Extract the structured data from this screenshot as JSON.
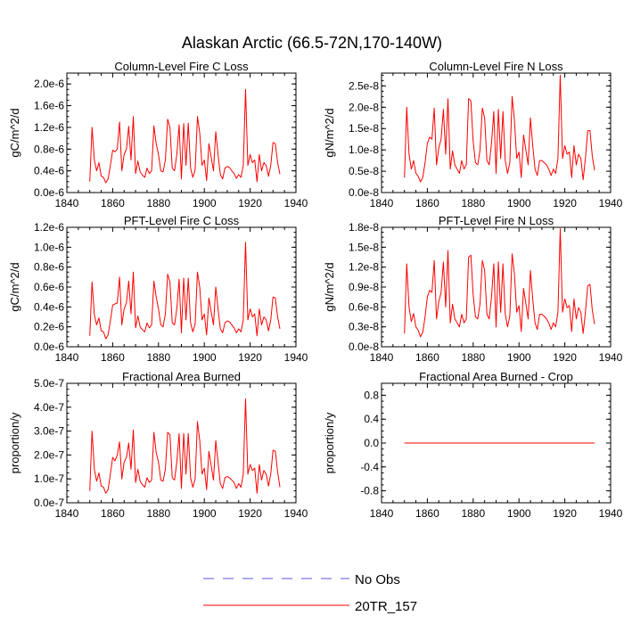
{
  "title": "Alaskan Arctic (66.5-72N,170-140W)",
  "colors": {
    "model": "#ff0000",
    "obs": "#5555dd",
    "axis": "#000000"
  },
  "legend": [
    {
      "label": "No Obs",
      "style": "dashed",
      "color": "#5555dd"
    },
    {
      "label": "20TR_157",
      "style": "solid",
      "color": "#ff0000"
    }
  ],
  "chart_data": [
    {
      "type": "line",
      "title": "Column-Level Fire C Loss",
      "ylabel": "gC/m^2/d",
      "xlim": [
        1840,
        1940
      ],
      "xticks": [
        1840,
        1860,
        1880,
        1900,
        1920,
        1940
      ],
      "ylim": [
        0,
        2.2e-06
      ],
      "yticks": [
        0,
        4e-07,
        8e-07,
        1.2e-06,
        1.6e-06,
        2e-06
      ],
      "ytick_labels": [
        "0.0e-6",
        "0.4e-6",
        "0.8e-6",
        "1.2e-6",
        "1.6e-6",
        "2.0e-6"
      ],
      "x_start": 1850,
      "series": [
        {
          "name": "20TR_157",
          "values": [
            2e-07,
            1.2e-06,
            6e-07,
            4e-07,
            5.5e-07,
            3e-07,
            2.8e-07,
            1.8e-07,
            2.5e-07,
            5e-07,
            7.8e-07,
            7.5e-07,
            8e-07,
            1.3e-06,
            4e-07,
            7e-07,
            8e-07,
            1.22e-06,
            6e-07,
            1.4e-06,
            3.5e-07,
            5.8e-07,
            3.8e-07,
            3.2e-07,
            2.8e-07,
            4.5e-07,
            3.5e-07,
            4e-07,
            1.23e-06,
            9e-07,
            7e-07,
            4e-07,
            3.8e-07,
            6e-07,
            1.35e-06,
            1.2e-06,
            4.5e-07,
            4e-07,
            7e-07,
            1.25e-06,
            2.5e-07,
            1.27e-06,
            5e-07,
            1.28e-06,
            4.5e-07,
            2.8e-07,
            4.2e-07,
            1.4e-06,
            1.1e-06,
            5e-07,
            6e-07,
            2.2e-07,
            9e-07,
            6.5e-07,
            4e-07,
            1.12e-06,
            7e-07,
            3.3e-07,
            2.5e-07,
            4.5e-07,
            4.8e-07,
            4.6e-07,
            4e-07,
            3.5e-07,
            2.6e-07,
            3.3e-07,
            2.8e-07,
            5e-07,
            1.9e-06,
            5e-07,
            7e-07,
            5.5e-07,
            6e-07,
            2e-07,
            7e-07,
            4e-07,
            5.5e-07,
            5e-07,
            3e-07,
            5e-07,
            9.2e-07,
            9e-07,
            5.5e-07,
            3.4e-07
          ]
        }
      ]
    },
    {
      "type": "line",
      "title": "Column-Level Fire N Loss",
      "ylabel": "gN/m^2/d",
      "xlim": [
        1840,
        1940
      ],
      "xticks": [
        1840,
        1860,
        1880,
        1900,
        1920,
        1940
      ],
      "ylim": [
        0,
        2.8e-08
      ],
      "yticks": [
        0,
        5e-09,
        1e-08,
        1.5e-08,
        2e-08,
        2.5e-08
      ],
      "ytick_labels": [
        "0.0e-8",
        "0.5e-8",
        "1.0e-8",
        "1.5e-8",
        "2.0e-8",
        "2.5e-8"
      ],
      "x_start": 1850,
      "series": [
        {
          "name": "20TR_157",
          "values": [
            3.5e-09,
            2e-08,
            9e-09,
            5.5e-09,
            7.5e-09,
            4.5e-09,
            3.8e-09,
            2.5e-09,
            3.5e-09,
            7e-09,
            1.15e-08,
            1.3e-08,
            1.25e-08,
            1.98e-08,
            6.5e-09,
            1.05e-08,
            1.25e-08,
            1.95e-08,
            9e-09,
            2.2e-08,
            5.5e-09,
            9.8e-09,
            6.5e-09,
            5.5e-09,
            4.5e-09,
            7.5e-09,
            5.5e-09,
            6.5e-09,
            2.2e-08,
            2.15e-08,
            1.2e-08,
            7e-09,
            6.5e-09,
            1e-08,
            1.98e-08,
            1.75e-08,
            7.5e-09,
            6.5e-09,
            1.15e-08,
            1.9e-08,
            4.5e-09,
            1.95e-08,
            8e-09,
            1.9e-08,
            7.5e-09,
            4.5e-09,
            7e-09,
            2.25e-08,
            1.7e-08,
            8e-09,
            9.5e-09,
            3.5e-09,
            1.35e-08,
            1e-08,
            6.5e-09,
            1.75e-08,
            1.1e-08,
            5.5e-09,
            4e-09,
            7.5e-09,
            7.5e-09,
            7e-09,
            6.5e-09,
            5.5e-09,
            4e-09,
            5.5e-09,
            4.5e-09,
            8e-09,
            2.75e-08,
            8e-09,
            1.1e-08,
            9e-09,
            9.5e-09,
            3.5e-09,
            1.1e-08,
            6.5e-09,
            9e-09,
            8e-09,
            3e-09,
            8e-09,
            1.45e-08,
            1.45e-08,
            8.5e-09,
            5.2e-09
          ]
        }
      ]
    },
    {
      "type": "line",
      "title": "PFT-Level Fire C Loss",
      "ylabel": "gC/m^2/d",
      "xlim": [
        1840,
        1940
      ],
      "xticks": [
        1840,
        1860,
        1880,
        1900,
        1920,
        1940
      ],
      "ylim": [
        0,
        1.2e-06
      ],
      "yticks": [
        0,
        2e-07,
        4e-07,
        6e-07,
        8e-07,
        1e-06,
        1.2e-06
      ],
      "ytick_labels": [
        "0.0e-6",
        "0.2e-6",
        "0.4e-6",
        "0.6e-6",
        "0.8e-6",
        "1.0e-6",
        "1.2e-6"
      ],
      "x_start": 1850,
      "series": [
        {
          "name": "20TR_157",
          "values": [
            1.1e-07,
            6.5e-07,
            3.2e-07,
            2.2e-07,
            2.9e-07,
            1.6e-07,
            1.5e-07,
            8e-08,
            1.2e-07,
            2.6e-07,
            4.2e-07,
            4.3e-07,
            4.4e-07,
            7e-07,
            2.2e-07,
            3.8e-07,
            4.4e-07,
            6.6e-07,
            3.3e-07,
            7.5e-07,
            1.9e-07,
            3.1e-07,
            2e-07,
            1.7e-07,
            1.5e-07,
            2.4e-07,
            1.9e-07,
            2.2e-07,
            6.6e-07,
            5e-07,
            3.8e-07,
            2.2e-07,
            2e-07,
            3.3e-07,
            7.3e-07,
            6.5e-07,
            2.4e-07,
            2.2e-07,
            3.8e-07,
            6.8e-07,
            1.4e-07,
            6.9e-07,
            2.7e-07,
            6.9e-07,
            2.4e-07,
            1.5e-07,
            2.3e-07,
            7.5e-07,
            6e-07,
            2.7e-07,
            3.3e-07,
            1.2e-07,
            4.9e-07,
            3.5e-07,
            2.2e-07,
            6e-07,
            3.8e-07,
            1.8e-07,
            1.4e-07,
            2.4e-07,
            2.6e-07,
            2.5e-07,
            2.2e-07,
            1.9e-07,
            1.4e-07,
            1.8e-07,
            1.5e-07,
            2.7e-07,
            1.05e-06,
            2.7e-07,
            3.8e-07,
            3e-07,
            3.3e-07,
            1.1e-07,
            3.8e-07,
            2.2e-07,
            3e-07,
            2.7e-07,
            1.6e-07,
            2.7e-07,
            5e-07,
            4.9e-07,
            3e-07,
            1.8e-07
          ]
        }
      ]
    },
    {
      "type": "line",
      "title": "PFT-Level Fire N Loss",
      "ylabel": "gN/m^2/d",
      "xlim": [
        1840,
        1940
      ],
      "xticks": [
        1840,
        1860,
        1880,
        1900,
        1920,
        1940
      ],
      "ylim": [
        0,
        1.8e-08
      ],
      "yticks": [
        0,
        3e-09,
        6e-09,
        9e-09,
        1.2e-08,
        1.5e-08,
        1.8e-08
      ],
      "ytick_labels": [
        "0.0e-8",
        "0.3e-8",
        "0.6e-8",
        "0.9e-8",
        "1.2e-8",
        "1.5e-8",
        "1.8e-8"
      ],
      "x_start": 1850,
      "series": [
        {
          "name": "20TR_157",
          "values": [
            2e-09,
            1.25e-08,
            6e-09,
            3.8e-09,
            5e-09,
            3e-09,
            2.5e-09,
            1.5e-09,
            2.2e-09,
            4.5e-09,
            7.5e-09,
            8.5e-09,
            8.2e-09,
            1.3e-08,
            4.2e-09,
            6.8e-09,
            8.2e-09,
            1.28e-08,
            6e-09,
            1.45e-08,
            3.6e-09,
            6.4e-09,
            4.2e-09,
            3.6e-09,
            3e-09,
            4.9e-09,
            3.6e-09,
            4.2e-09,
            1.35e-08,
            1.38e-08,
            7.8e-09,
            4.5e-09,
            4.2e-09,
            6.5e-09,
            1.3e-08,
            1.15e-08,
            4.9e-09,
            4.2e-09,
            7.5e-09,
            1.25e-08,
            3e-09,
            1.28e-08,
            5.2e-09,
            1.25e-08,
            4.9e-09,
            3e-09,
            4.6e-09,
            1.4e-08,
            1.1e-08,
            5.2e-09,
            6.2e-09,
            2.3e-09,
            8.8e-09,
            6.5e-09,
            4.2e-09,
            1.15e-08,
            7.2e-09,
            3.6e-09,
            2.6e-09,
            4.9e-09,
            4.9e-09,
            4.6e-09,
            4.2e-09,
            3.6e-09,
            2.6e-09,
            3.6e-09,
            3e-09,
            5.2e-09,
            1.78e-08,
            5.2e-09,
            7.2e-09,
            5.9e-09,
            6.2e-09,
            2.3e-09,
            7.2e-09,
            4.2e-09,
            5.9e-09,
            5.2e-09,
            2e-09,
            5.2e-09,
            9.2e-09,
            9.4e-09,
            5.5e-09,
            3.4e-09
          ]
        }
      ]
    },
    {
      "type": "line",
      "title": "Fractional Area Burned",
      "ylabel": "proportion/y",
      "xlim": [
        1840,
        1940
      ],
      "xticks": [
        1840,
        1860,
        1880,
        1900,
        1920,
        1940
      ],
      "ylim": [
        0,
        5e-07
      ],
      "yticks": [
        0,
        1e-07,
        2e-07,
        3e-07,
        4e-07,
        5e-07
      ],
      "ytick_labels": [
        "0.0e-7",
        "1.0e-7",
        "2.0e-7",
        "3.0e-7",
        "4.0e-7",
        "5.0e-7"
      ],
      "x_start": 1850,
      "series": [
        {
          "name": "20TR_157",
          "values": [
            5e-08,
            3e-07,
            1.4e-07,
            9e-08,
            1.25e-07,
            7e-08,
            6.5e-08,
            4e-08,
            5.5e-08,
            1.2e-07,
            1.9e-07,
            1.75e-07,
            2e-07,
            2.55e-07,
            1e-07,
            1.7e-07,
            1.9e-07,
            2.5e-07,
            1.4e-07,
            3.05e-07,
            8.5e-08,
            1.4e-07,
            9e-08,
            7.5e-08,
            6.5e-08,
            1.05e-07,
            8.5e-08,
            9.5e-08,
            2.95e-07,
            2.1e-07,
            1.7e-07,
            9.5e-08,
            9e-08,
            1.4e-07,
            2.95e-07,
            2.85e-07,
            1.05e-07,
            9.5e-08,
            1.7e-07,
            2.9e-07,
            6e-08,
            2.9e-07,
            1.2e-07,
            2.9e-07,
            1.05e-07,
            6.5e-08,
            1e-07,
            3.4e-07,
            2.6e-07,
            1.2e-07,
            1.45e-07,
            5.5e-08,
            2.15e-07,
            1.55e-07,
            9.5e-08,
            2.6e-07,
            1.7e-07,
            8e-08,
            6e-08,
            1.05e-07,
            1.1e-07,
            1.05e-07,
            9.5e-08,
            8.5e-08,
            6e-08,
            8e-08,
            6.5e-08,
            1.2e-07,
            4.35e-07,
            1.2e-07,
            1.6e-07,
            1.35e-07,
            1.45e-07,
            4e-08,
            1.6e-07,
            9.5e-08,
            1.35e-07,
            1.2e-07,
            7e-08,
            1.2e-07,
            2.2e-07,
            2.15e-07,
            1.3e-07,
            6.5e-08
          ]
        }
      ]
    },
    {
      "type": "line",
      "title": "Fractional Area Burned - Crop",
      "ylabel": "proportion/y",
      "xlim": [
        1840,
        1940
      ],
      "xticks": [
        1840,
        1860,
        1880,
        1900,
        1920,
        1940
      ],
      "ylim": [
        -1,
        1
      ],
      "yticks": [
        -0.8,
        -0.4,
        0,
        0.4,
        0.8
      ],
      "ytick_labels": [
        "-0.8",
        "-0.4",
        "0.0",
        "0.4",
        "0.8"
      ],
      "x_start": 1850,
      "series": [
        {
          "name": "20TR_157",
          "values": [
            0,
            0,
            0,
            0,
            0,
            0,
            0,
            0,
            0,
            0,
            0,
            0,
            0,
            0,
            0,
            0,
            0,
            0,
            0,
            0,
            0,
            0,
            0,
            0,
            0,
            0,
            0,
            0,
            0,
            0,
            0,
            0,
            0,
            0,
            0,
            0,
            0,
            0,
            0,
            0,
            0,
            0,
            0,
            0,
            0,
            0,
            0,
            0,
            0,
            0,
            0,
            0,
            0,
            0,
            0,
            0,
            0,
            0,
            0,
            0,
            0,
            0,
            0,
            0,
            0,
            0,
            0,
            0,
            0,
            0,
            0,
            0,
            0,
            0,
            0,
            0,
            0,
            0,
            0,
            0,
            0,
            0,
            0,
            0
          ]
        }
      ]
    }
  ]
}
